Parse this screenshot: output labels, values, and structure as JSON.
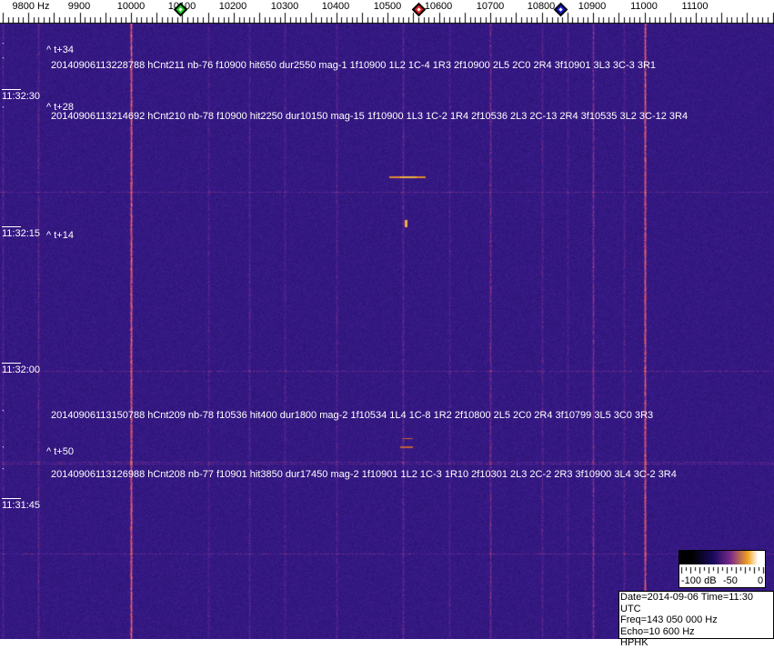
{
  "axis": {
    "unit": "Hz",
    "labels": [
      "9800 Hz",
      "9900",
      "10000",
      "10100",
      "10200",
      "10300",
      "10400",
      "10500",
      "10600",
      "10700",
      "10800",
      "10900",
      "11000",
      "11100"
    ],
    "values": [
      9800,
      9900,
      10000,
      10100,
      10200,
      10300,
      10400,
      10500,
      10600,
      10700,
      10800,
      10900,
      11000,
      11100
    ]
  },
  "markers": [
    {
      "name": "green",
      "freq": 10100,
      "color": "#22cc22"
    },
    {
      "name": "red",
      "freq": 10560,
      "color": "#dd2222"
    },
    {
      "name": "blue",
      "freq": 10840,
      "color": "#1a1acc"
    }
  ],
  "time_labels": [
    "11:32:30",
    "11:32:15",
    "11:32:00",
    "11:31:45"
  ],
  "annotations": {
    "t34": "^ t+34",
    "t28": "^ t+28",
    "t14": "^ t+14",
    "t50": "^ t+50",
    "line1": "20140906113228788 hCnt211 nb-76 f10900 hit650 dur2550 mag-1 1f10900 1L2 1C-4 1R3 2f10900 2L5 2C0 2R4 3f10901 3L3 3C-3 3R1",
    "line2": "20140906113214692 hCnt210 nb-78 f10900 hit2250 dur10150 mag-15 1f10900 1L3 1C-2 1R4 2f10536 2L3 2C-13 2R4 3f10535 3L2 3C-12 3R4",
    "line3": "20140906113150788 hCnt209 nb-78 f10536 hit400 dur1800 mag-2 1f10534 1L4 1C-8 1R2 2f10800 2L5 2C0 2R4 3f10799 3L5 3C0 3R3",
    "line4": "20140906113126988 hCnt208 nb-77 f10901 hit3850 dur17450 mag-2 1f10901 1L2 1C-3 1R10 2f10301 2L3 2C-2 2R3 3f10900 3L4 3C-2 3R4"
  },
  "color_scale": {
    "labels": [
      "-100 dB",
      "-50",
      "0"
    ]
  },
  "info": {
    "date_time": "Date=2014-09-06 Time=11:30 UTC",
    "freq": "Freq=143 050 000 Hz",
    "echo": "Echo=10 600 Hz",
    "station": "HPHK"
  }
}
